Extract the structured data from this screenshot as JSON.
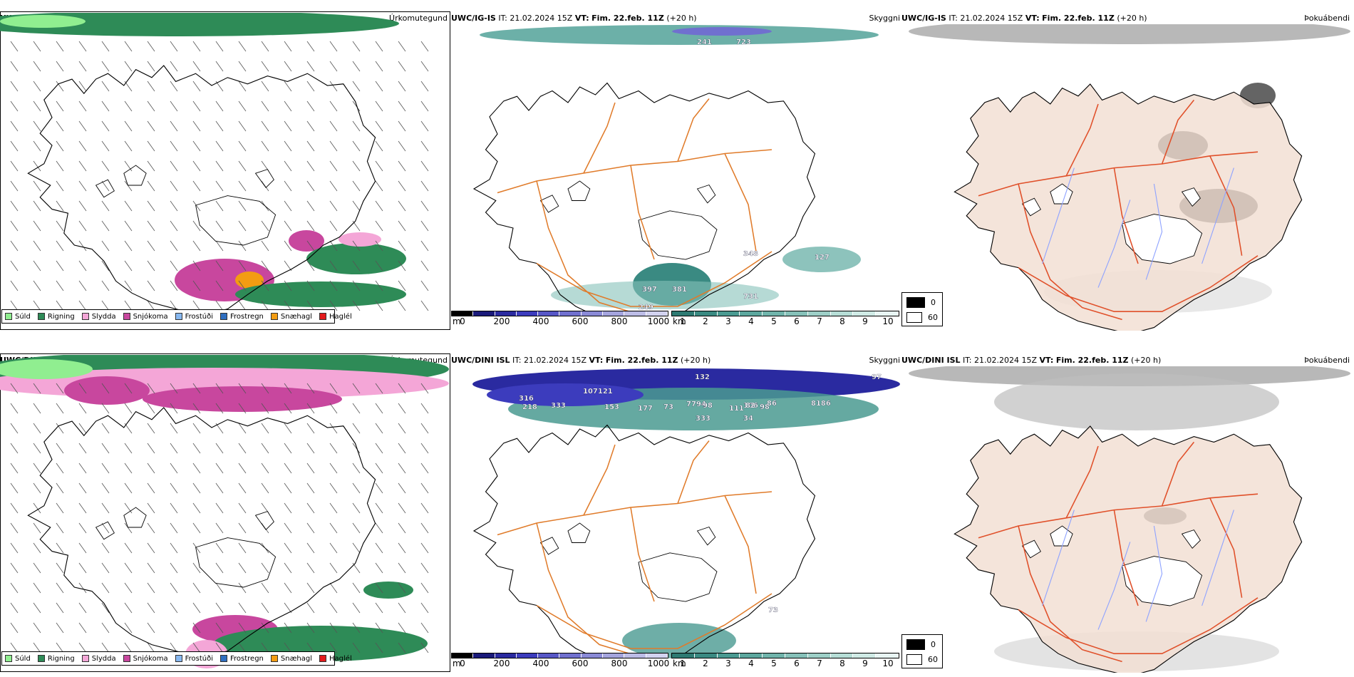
{
  "rows": [
    {
      "model": "UWC/IG-IS",
      "it": "IT: 21.02.2024 15Z",
      "vt_label": "VT:",
      "vt": "Fim. 22.feb. 11Z",
      "lead": "(+20 h)",
      "p1_title": "Úrkomutegund",
      "p2_title": "Skyggni",
      "p3_title": "Þokuábendi",
      "vis_labels": [
        "241",
        "723",
        "348",
        "127",
        "397",
        "381",
        "249",
        "731"
      ]
    },
    {
      "model": "UWC/DINI ISL",
      "it": "IT: 21.02.2024 15Z",
      "vt_label": "VT:",
      "vt": "Fim. 22.feb. 11Z",
      "lead": "(+20 h)",
      "p1_title": "Úrkomutegund",
      "p2_title": "Skyggni",
      "p3_title": "Þokuábendi",
      "vis_labels": [
        "132",
        "97",
        "107121",
        "316",
        "218",
        "333",
        "153",
        "177",
        "73",
        "7794",
        "98",
        "111",
        "106",
        "98",
        "82",
        "86",
        "8186",
        "333",
        "34",
        "73"
      ]
    }
  ],
  "precip_legend": [
    {
      "label": "Súld",
      "color": "#90ee90"
    },
    {
      "label": "Rigning",
      "color": "#2e8b57"
    },
    {
      "label": "Slydda",
      "color": "#f4a6d7"
    },
    {
      "label": "Snjókoma",
      "color": "#c8479e"
    },
    {
      "label": "Frostúði",
      "color": "#87b8f0"
    },
    {
      "label": "Frostregn",
      "color": "#2f6fc0"
    },
    {
      "label": "Snæhagl",
      "color": "#f39c12"
    },
    {
      "label": "Haglél",
      "color": "#e31a1c"
    }
  ],
  "vis_scale_m": {
    "unit": "m",
    "ticks": [
      "0",
      "200",
      "400",
      "600",
      "800",
      "1000"
    ],
    "colors": [
      "#000000",
      "#1a1a7a",
      "#2a2aa0",
      "#3c3cbd",
      "#5757c7",
      "#7070cf",
      "#8a8ad6",
      "#a4a4dd",
      "#bcbce6",
      "#d2d2ef"
    ]
  },
  "vis_scale_km": {
    "unit": "km",
    "ticks": [
      "1",
      "2",
      "3",
      "4",
      "5",
      "6",
      "7",
      "8",
      "9",
      "10"
    ],
    "colors": [
      "#2d7a72",
      "#3a8a82",
      "#4a9a91",
      "#5ca79e",
      "#70b4ab",
      "#86c1b9",
      "#9dcfc7",
      "#b6ddd6",
      "#cfeae5",
      "#e8f5f3"
    ]
  },
  "fog_legend": [
    {
      "label": "0",
      "color": "#000000"
    },
    {
      "label": "60",
      "color": "#ffffff"
    }
  ],
  "colors": {
    "road": "#e07b2a",
    "road_red": "#e0502a",
    "land_fog": "#f2dfd3",
    "river": "#8fa3ff",
    "outline": "#000000"
  }
}
